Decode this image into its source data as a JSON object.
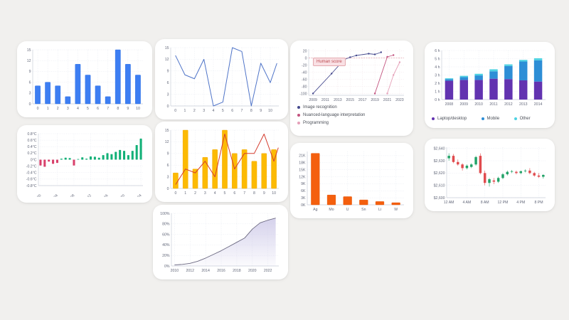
{
  "page": {
    "background": "#f1f0ee",
    "card_background": "#ffffff",
    "grid_color": "#e1e5ee",
    "axis_color": "#c9cdd8",
    "tick_text_color": "#63687a"
  },
  "chart_data": [
    {
      "id": "blue-bar-chart",
      "type": "bar",
      "categories": [
        "0",
        "1",
        "2",
        "3",
        "4",
        "5",
        "6",
        "7",
        "8",
        "9",
        "10"
      ],
      "values": [
        5,
        6,
        5,
        2,
        11,
        8,
        5,
        2,
        15,
        11,
        8
      ],
      "ylim": [
        0,
        15
      ],
      "ytick_vals": [
        0,
        3,
        6,
        9,
        12,
        15
      ],
      "ytick_labels": [
        "0",
        "3",
        "6",
        "9",
        "12",
        "15"
      ],
      "color": "#3d7ef2",
      "stroke": "#2b6fe3"
    },
    {
      "id": "blue-line-chart",
      "type": "line",
      "x": [
        0,
        1,
        2,
        3,
        4,
        5,
        6,
        7,
        8,
        9,
        10,
        10.7
      ],
      "values": [
        13,
        8,
        7,
        12,
        0,
        1,
        15,
        14,
        0,
        11,
        6,
        11
      ],
      "xlim": [
        -0.5,
        10.9
      ],
      "xtick_vals": [
        0,
        1,
        2,
        3,
        4,
        5,
        6,
        7,
        8,
        9,
        10
      ],
      "xtick_labels": [
        "0",
        "1",
        "2",
        "3",
        "4",
        "5",
        "6",
        "7",
        "8",
        "9",
        "10"
      ],
      "ylim": [
        0,
        15
      ],
      "ytick_vals": [
        0,
        3,
        6,
        9,
        12,
        15
      ],
      "ytick_labels": [
        "0",
        "3",
        "6",
        "9",
        "12",
        "15"
      ],
      "color": "#4f74c8"
    },
    {
      "id": "ai-vs-human-score-chart",
      "type": "multiline",
      "annotation": "Human score",
      "annotation_bg": "#f9e0e4",
      "annotation_color": "#bb4a50",
      "xlim": [
        2008.3,
        2023.7
      ],
      "xtick_vals": [
        2009,
        2011,
        2013,
        2015,
        2017,
        2019,
        2021,
        2023
      ],
      "xtick_labels": [
        "2009",
        "2011",
        "2013",
        "2015",
        "2017",
        "2019",
        "2021",
        "2023"
      ],
      "ylim": [
        -105,
        25
      ],
      "ytick_vals": [
        20,
        0,
        -20,
        -40,
        -60,
        -80,
        -100
      ],
      "ytick_labels": [
        "20",
        "0",
        "-20",
        "-40",
        "-60",
        "-80",
        "-100"
      ],
      "grid_color": "#eedfe3",
      "zero_line_color": "#e3a2ac",
      "series": [
        {
          "name": "Image recognition",
          "color": "#45498d",
          "points": [
            [
              2009,
              -100
            ],
            [
              2012,
              -44
            ],
            [
              2014,
              -5
            ],
            [
              2015,
              2
            ],
            [
              2016,
              7
            ],
            [
              2018,
              12
            ],
            [
              2019,
              10
            ],
            [
              2020,
              16
            ]
          ]
        },
        {
          "name": "Nuanced-language interpretation",
          "color": "#c2527e",
          "points": [
            [
              2019,
              -100
            ],
            [
              2021,
              3
            ],
            [
              2022,
              8
            ]
          ]
        },
        {
          "name": "Programming",
          "color": "#e5a0b8",
          "points": [
            [
              2021,
              -100
            ],
            [
              2022,
              -48
            ],
            [
              2023,
              -12
            ]
          ]
        }
      ]
    },
    {
      "id": "device-usage-hours-chart",
      "type": "stacked-bar",
      "categories": [
        "2008",
        "2009",
        "2010",
        "2011",
        "2012",
        "2013",
        "2014"
      ],
      "ylim": [
        0,
        6
      ],
      "ytick_vals": [
        0,
        1,
        2,
        3,
        4,
        5,
        6
      ],
      "ytick_labels": [
        "0 h",
        "1 h",
        "2 h",
        "3 h",
        "4 h",
        "5 h",
        "6 h"
      ],
      "series": [
        {
          "name": "Laptop/desktop",
          "color": "#6233b0",
          "values": [
            2.3,
            2.4,
            2.4,
            2.55,
            2.5,
            2.35,
            2.2
          ]
        },
        {
          "name": "Mobile",
          "color": "#2d8ed6",
          "values": [
            0.2,
            0.35,
            0.55,
            0.9,
            1.6,
            2.3,
            2.6
          ]
        },
        {
          "name": "Other",
          "color": "#4dd2e2",
          "values": [
            0.1,
            0.15,
            0.2,
            0.25,
            0.2,
            0.2,
            0.25
          ]
        }
      ]
    },
    {
      "id": "temperature-anomaly-chart",
      "type": "bar",
      "categories": [
        "2000",
        "2001",
        "2002",
        "2003",
        "2004",
        "2005",
        "2006",
        "2007",
        "2008",
        "2009",
        "2010",
        "2011",
        "2012",
        "2013",
        "2014",
        "2015",
        "2016",
        "2017",
        "2018",
        "2019",
        "2020",
        "2021",
        "2022",
        "2023",
        "2024"
      ],
      "values": [
        -0.18,
        -0.22,
        -0.06,
        -0.13,
        -0.1,
        0.03,
        0.06,
        0.05,
        -0.18,
        0.02,
        0.07,
        0.03,
        0.1,
        0.09,
        0.06,
        0.14,
        0.2,
        0.17,
        0.24,
        0.3,
        0.27,
        0.14,
        0.27,
        0.45,
        0.65
      ],
      "xtick_idx": [
        0,
        4,
        8,
        12,
        16,
        20,
        24
      ],
      "xtick_labels": [
        "2000",
        "2004",
        "2008",
        "2012",
        "2016",
        "2020",
        "2024"
      ],
      "rotate_xticks": true,
      "ylim": [
        -0.8,
        0.8
      ],
      "ytick_vals": [
        0.8,
        0.6,
        0.4,
        0.2,
        0,
        -0.2,
        -0.4,
        -0.6,
        -0.8
      ],
      "ytick_labels": [
        "0.8°C",
        "0.6°C",
        "0.4°C",
        "0.2°C",
        "0°C",
        "-0.2°C",
        "-0.4°C",
        "-0.6°C",
        "-0.8°C"
      ],
      "color": "#12b077",
      "negative_color": "#d8416b"
    },
    {
      "id": "bar-line-combo-chart",
      "type": "bar-line",
      "categories": [
        "0",
        "1",
        "2",
        "3",
        "4",
        "5",
        "6",
        "7",
        "8",
        "9",
        "10"
      ],
      "values": [
        4,
        15,
        5,
        8,
        10,
        15,
        9,
        10,
        7,
        9,
        10
      ],
      "line_x": [
        0,
        1,
        2,
        3,
        4,
        5,
        6,
        7,
        8,
        9,
        10,
        10.45
      ],
      "line_values": [
        1,
        5,
        4,
        7,
        3,
        14,
        5,
        9,
        9,
        14,
        7,
        10.5
      ],
      "ylim": [
        0,
        15
      ],
      "ytick_vals": [
        0,
        3,
        6,
        9,
        12,
        15
      ],
      "ytick_labels": [
        "0",
        "3",
        "6",
        "9",
        "12",
        "15"
      ],
      "color": "#fcba04",
      "stroke": "#f0a500",
      "line_color": "#d43c2e"
    },
    {
      "id": "metal-production-chart",
      "type": "bar",
      "categories": [
        "Ag",
        "Mo",
        "U",
        "Sn",
        "Li",
        "W"
      ],
      "values": [
        22000,
        4200,
        3500,
        2100,
        1400,
        900
      ],
      "ylim": [
        0,
        22800
      ],
      "ytick_vals": [
        0,
        3000,
        6000,
        9000,
        12000,
        15000,
        18000,
        21000
      ],
      "ytick_labels": [
        "0K",
        "3K",
        "6K",
        "9K",
        "12K",
        "15K",
        "18K",
        "21K"
      ],
      "color": "#f45f0e",
      "stroke": "#e25406"
    },
    {
      "id": "price-candlestick-chart",
      "type": "candlestick",
      "candles": [
        [
          2632,
          2636,
          2630,
          2634
        ],
        [
          2634,
          2635.5,
          2628,
          2629
        ],
        [
          2629,
          2631,
          2626,
          2627
        ],
        [
          2627,
          2628,
          2622,
          2624
        ],
        [
          2624,
          2627,
          2623,
          2626
        ],
        [
          2625,
          2628,
          2624,
          2627
        ],
        [
          2627,
          2634,
          2626,
          2633
        ],
        [
          2634,
          2636,
          2619,
          2620
        ],
        [
          2620,
          2622,
          2610,
          2612
        ],
        [
          2612,
          2616,
          2609,
          2615
        ],
        [
          2614,
          2616,
          2611,
          2613
        ],
        [
          2613,
          2617,
          2612,
          2616
        ],
        [
          2616,
          2620,
          2615,
          2619
        ],
        [
          2619,
          2622,
          2618,
          2621
        ],
        [
          2621,
          2622.5,
          2620,
          2621.5
        ],
        [
          2621,
          2622,
          2619,
          2620
        ],
        [
          2620,
          2622,
          2619,
          2621.5
        ],
        [
          2621.5,
          2623,
          2620.5,
          2622
        ],
        [
          2622,
          2624,
          2619,
          2620
        ],
        [
          2620,
          2621,
          2617,
          2618
        ],
        [
          2618,
          2620,
          2616,
          2617
        ],
        [
          2617,
          2619,
          2615.5,
          2618.5
        ]
      ],
      "xtick_idx": [
        0,
        4,
        8,
        12,
        16,
        20
      ],
      "xtick_labels": [
        "12 AM",
        "4 AM",
        "8 AM",
        "12 PM",
        "4 PM",
        "8 PM"
      ],
      "ylim": [
        2600,
        2641
      ],
      "ytick_vals": [
        2640,
        2630,
        2620,
        2610,
        2600
      ],
      "ytick_labels": [
        "$2,640",
        "$2,630",
        "$2,620",
        "$2,610",
        "$2,600"
      ],
      "up_color": "#21a267",
      "down_color": "#e04b4e"
    },
    {
      "id": "adoption-share-area-chart",
      "type": "area",
      "x": [
        2010,
        2011,
        2012,
        2013,
        2014,
        2015,
        2016,
        2017,
        2018,
        2019,
        2020,
        2021,
        2022,
        2023
      ],
      "values": [
        2,
        3,
        5,
        9,
        15,
        22,
        29,
        37,
        45,
        53,
        70,
        82,
        87,
        91
      ],
      "xlim": [
        2009.6,
        2023.4
      ],
      "xtick_vals": [
        2010,
        2012,
        2014,
        2016,
        2018,
        2020,
        2022
      ],
      "xtick_labels": [
        "2010",
        "2012",
        "2014",
        "2016",
        "2018",
        "2020",
        "2022"
      ],
      "ylim": [
        0,
        100
      ],
      "ytick_vals": [
        0,
        20,
        40,
        60,
        80,
        100
      ],
      "ytick_labels": [
        "0%",
        "20%",
        "40%",
        "60%",
        "80%",
        "100%"
      ],
      "line_color": "#6b6880",
      "fill_color": "#cdc9e8"
    }
  ]
}
